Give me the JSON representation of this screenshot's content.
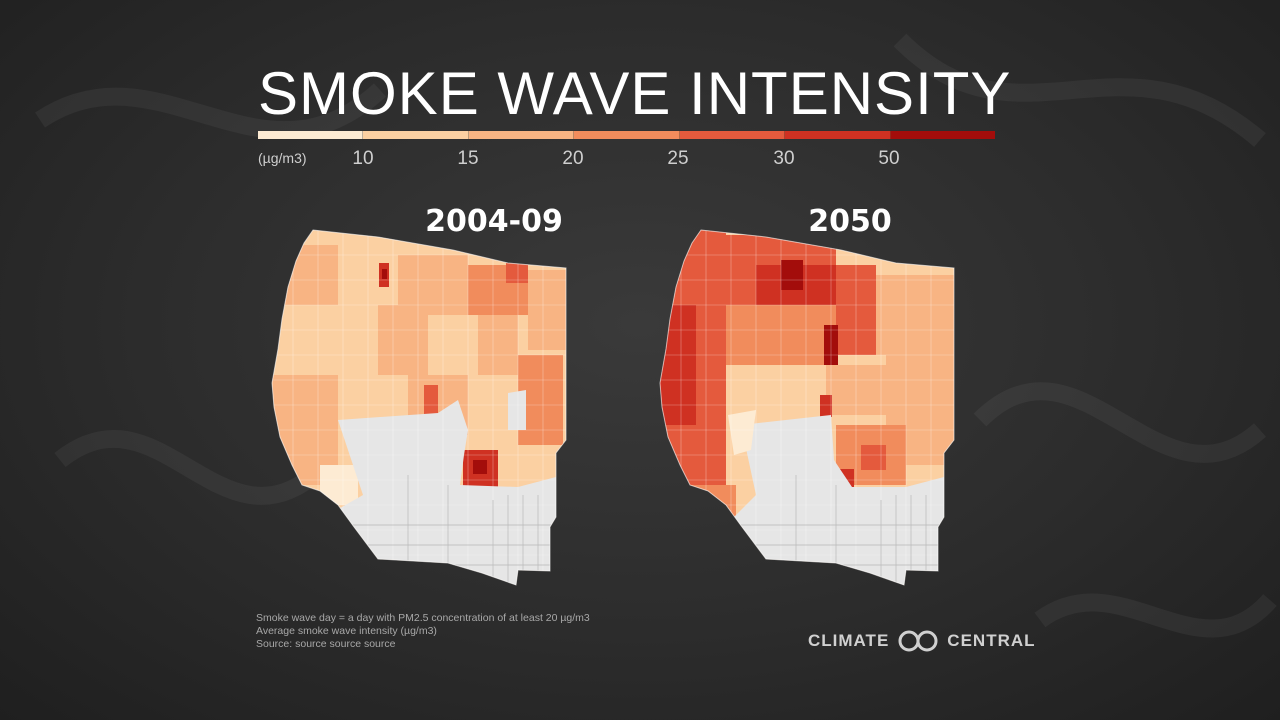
{
  "title": "SMOKE WAVE INTENSITY",
  "legend": {
    "unit": "(µg/m3)",
    "ticks": [
      "10",
      "15",
      "20",
      "25",
      "30",
      "50"
    ],
    "colors": [
      "#fdebd3",
      "#fbd0a2",
      "#f8b483",
      "#f18c5c",
      "#e45a3d",
      "#cf3122",
      "#a30d0b"
    ]
  },
  "maps": [
    {
      "title": "2004-09",
      "no_data_color": "#e6e6e6"
    },
    {
      "title": "2050",
      "no_data_color": "#e6e6e6"
    }
  ],
  "footnotes": [
    "Smoke wave day = a day with PM2.5 concentration of at least 20 µg/m3",
    "Average smoke wave intensity (µg/m3)",
    "Source: source source source"
  ],
  "brand": {
    "left": "CLIMATE",
    "right": "CENTRAL"
  }
}
